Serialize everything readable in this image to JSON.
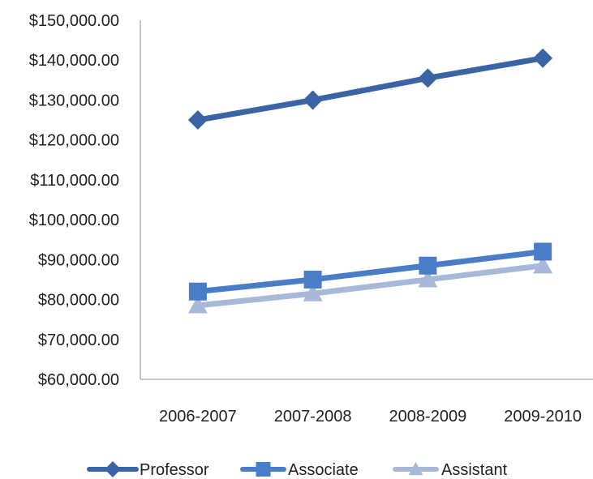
{
  "chart_data": {
    "type": "line",
    "categories": [
      "2006-2007",
      "2007-2008",
      "2008-2009",
      "2009-2010"
    ],
    "series": [
      {
        "name": "Professor",
        "values": [
          125000,
          130000,
          135500,
          140500
        ],
        "color": "#3B64A4",
        "marker": "diamond"
      },
      {
        "name": "Associate",
        "values": [
          82000,
          85000,
          88500,
          92000
        ],
        "color": "#4A7DC8",
        "marker": "square"
      },
      {
        "name": "Assistant",
        "values": [
          78500,
          81500,
          85000,
          88500
        ],
        "color": "#A8B8D8",
        "marker": "triangle"
      }
    ],
    "ylim": [
      60000,
      150000
    ],
    "ytick_step": 10000,
    "ytick_labels": [
      "$60,000.00",
      "$70,000.00",
      "$80,000.00",
      "$90,000.00",
      "$100,000.00",
      "$110,000.00",
      "$120,000.00",
      "$130,000.00",
      "$140,000.00",
      "$150,000.00"
    ],
    "grid": false,
    "legend_position": "bottom"
  }
}
